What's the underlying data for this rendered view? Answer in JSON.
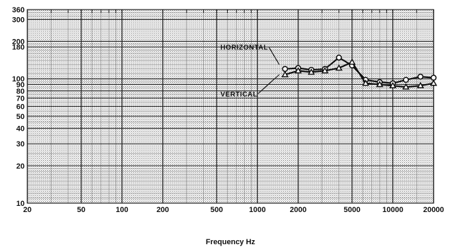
{
  "chart_data": {
    "type": "line",
    "title": "",
    "xlabel": "Frequency Hz",
    "ylabel": "",
    "x_scale": "log",
    "y_scale": "log",
    "xlim": [
      20,
      20000
    ],
    "ylim": [
      10,
      360
    ],
    "x_ticks": [
      {
        "value": 20,
        "label": "20"
      },
      {
        "value": 50,
        "label": "50"
      },
      {
        "value": 100,
        "label": "100"
      },
      {
        "value": 200,
        "label": "200"
      },
      {
        "value": 500,
        "label": "500"
      },
      {
        "value": 1000,
        "label": "1000"
      },
      {
        "value": 2000,
        "label": "2000"
      },
      {
        "value": 5000,
        "label": "5000"
      },
      {
        "value": 10000,
        "label": "10000"
      },
      {
        "value": 20000,
        "label": "20000"
      }
    ],
    "y_ticks": [
      {
        "value": 10,
        "label": "10"
      },
      {
        "value": 20,
        "label": "20"
      },
      {
        "value": 30,
        "label": "30"
      },
      {
        "value": 40,
        "label": "40"
      },
      {
        "value": 50,
        "label": "50"
      },
      {
        "value": 60,
        "label": "60"
      },
      {
        "value": 70,
        "label": "70"
      },
      {
        "value": 80,
        "label": "80"
      },
      {
        "value": 90,
        "label": "90"
      },
      {
        "value": 100,
        "label": "100"
      },
      {
        "value": 180,
        "label": "180"
      },
      {
        "value": 200,
        "label": "200"
      },
      {
        "value": 300,
        "label": "300"
      },
      {
        "value": 360,
        "label": "360"
      }
    ],
    "grid": true,
    "series": [
      {
        "name": "HORIZONTAL",
        "marker": "circle",
        "x": [
          1600,
          2000,
          2500,
          3150,
          4000,
          5000,
          6300,
          8000,
          10000,
          12500,
          16000,
          20000
        ],
        "y": [
          120,
          122,
          118,
          120,
          148,
          128,
          98,
          94,
          92,
          98,
          104,
          102
        ]
      },
      {
        "name": "VERTICAL",
        "marker": "triangle",
        "x": [
          1600,
          2000,
          2500,
          3150,
          4000,
          5000,
          6300,
          8000,
          10000,
          12500,
          16000,
          20000
        ],
        "y": [
          108,
          116,
          113,
          116,
          122,
          136,
          92,
          90,
          88,
          86,
          88,
          92
        ]
      }
    ],
    "annotations": [
      {
        "text": "HORIZONTAL",
        "x": 1200,
        "y": 180,
        "target_x": 1450,
        "target_y": 130
      },
      {
        "text": "VERTICAL",
        "x": 1000,
        "y": 76,
        "target_x": 1450,
        "target_y": 108
      }
    ]
  }
}
